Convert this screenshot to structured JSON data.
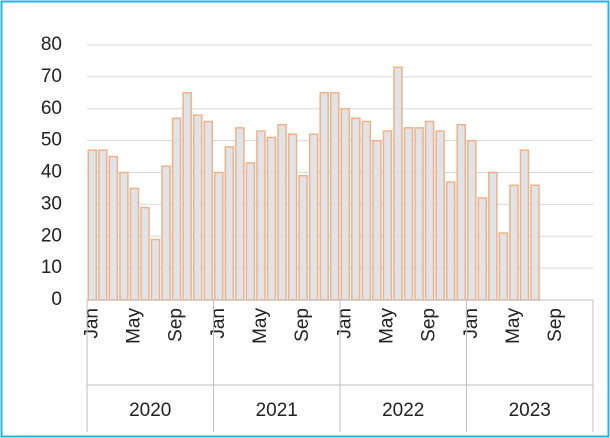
{
  "chart_data": {
    "type": "bar",
    "categories": [
      "Jan",
      null,
      null,
      null,
      "May",
      null,
      null,
      null,
      "Sep",
      null,
      null,
      null,
      "Jan",
      null,
      null,
      null,
      "May",
      null,
      null,
      null,
      "Sep",
      null,
      null,
      null,
      "Jan",
      null,
      null,
      null,
      "May",
      null,
      null,
      null,
      "Sep",
      null,
      null,
      null,
      "Jan",
      null,
      null,
      null,
      "May",
      null,
      null,
      null,
      "Sep",
      null,
      null,
      null
    ],
    "years": [
      "2020",
      "2021",
      "2022",
      "2023"
    ],
    "values": [
      47,
      47,
      45,
      40,
      35,
      29,
      19,
      42,
      57,
      65,
      58,
      56,
      40,
      48,
      54,
      43,
      53,
      51,
      55,
      52,
      39,
      52,
      65,
      65,
      60,
      57,
      56,
      50,
      53,
      73,
      54,
      54,
      56,
      53,
      37,
      55,
      50,
      32,
      40,
      21,
      36,
      47,
      36,
      null,
      null,
      null,
      null,
      null
    ],
    "color": "#dfe3ea",
    "edge_color": "#f4b183",
    "ylim": [
      0,
      80
    ],
    "yticks": [
      0,
      10,
      20,
      30,
      40,
      50,
      60,
      70,
      80
    ],
    "grid": true
  }
}
